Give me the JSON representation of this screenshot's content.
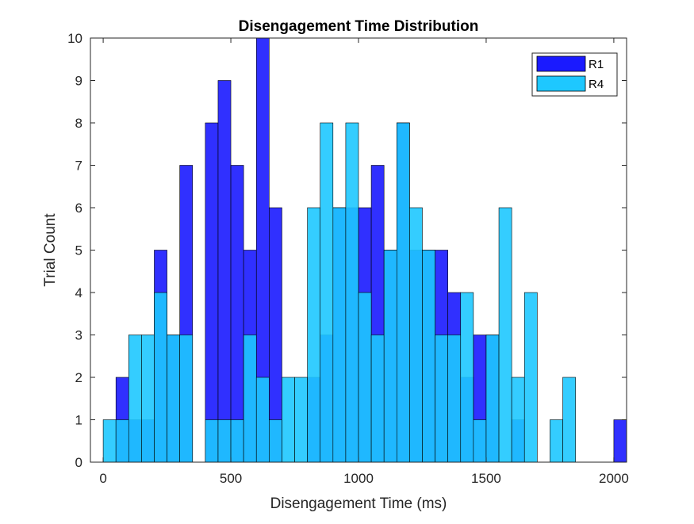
{
  "chart_data": {
    "type": "bar",
    "title": "Disengagement Time Distribution",
    "xlabel": "Disengagement Time (ms)",
    "ylabel": "Trial Count",
    "xlim": [
      -50,
      2050
    ],
    "ylim": [
      0,
      10
    ],
    "xticks": [
      0,
      500,
      1000,
      1500,
      2000
    ],
    "yticks": [
      0,
      1,
      2,
      3,
      4,
      5,
      6,
      7,
      8,
      9,
      10
    ],
    "bin_width": 50,
    "bin_start": 0,
    "grid": false,
    "legend_position": "top-right",
    "series": [
      {
        "name": "R1",
        "color": "#1a1aff",
        "values": [
          0,
          2,
          1,
          1,
          5,
          3,
          7,
          0,
          8,
          9,
          7,
          5,
          10,
          6,
          0,
          0,
          2,
          3,
          6,
          6,
          6,
          7,
          5,
          8,
          5,
          5,
          5,
          4,
          2,
          3,
          3,
          0,
          1,
          0,
          0,
          0,
          0,
          0,
          0,
          0,
          1
        ]
      },
      {
        "name": "R4",
        "color": "#1ec8ff",
        "values": [
          1,
          1,
          3,
          3,
          4,
          3,
          3,
          0,
          1,
          1,
          1,
          3,
          2,
          1,
          2,
          2,
          6,
          8,
          6,
          8,
          4,
          3,
          5,
          8,
          6,
          5,
          3,
          3,
          4,
          1,
          3,
          6,
          2,
          4,
          0,
          1,
          2,
          0,
          0,
          0,
          0
        ]
      }
    ]
  }
}
